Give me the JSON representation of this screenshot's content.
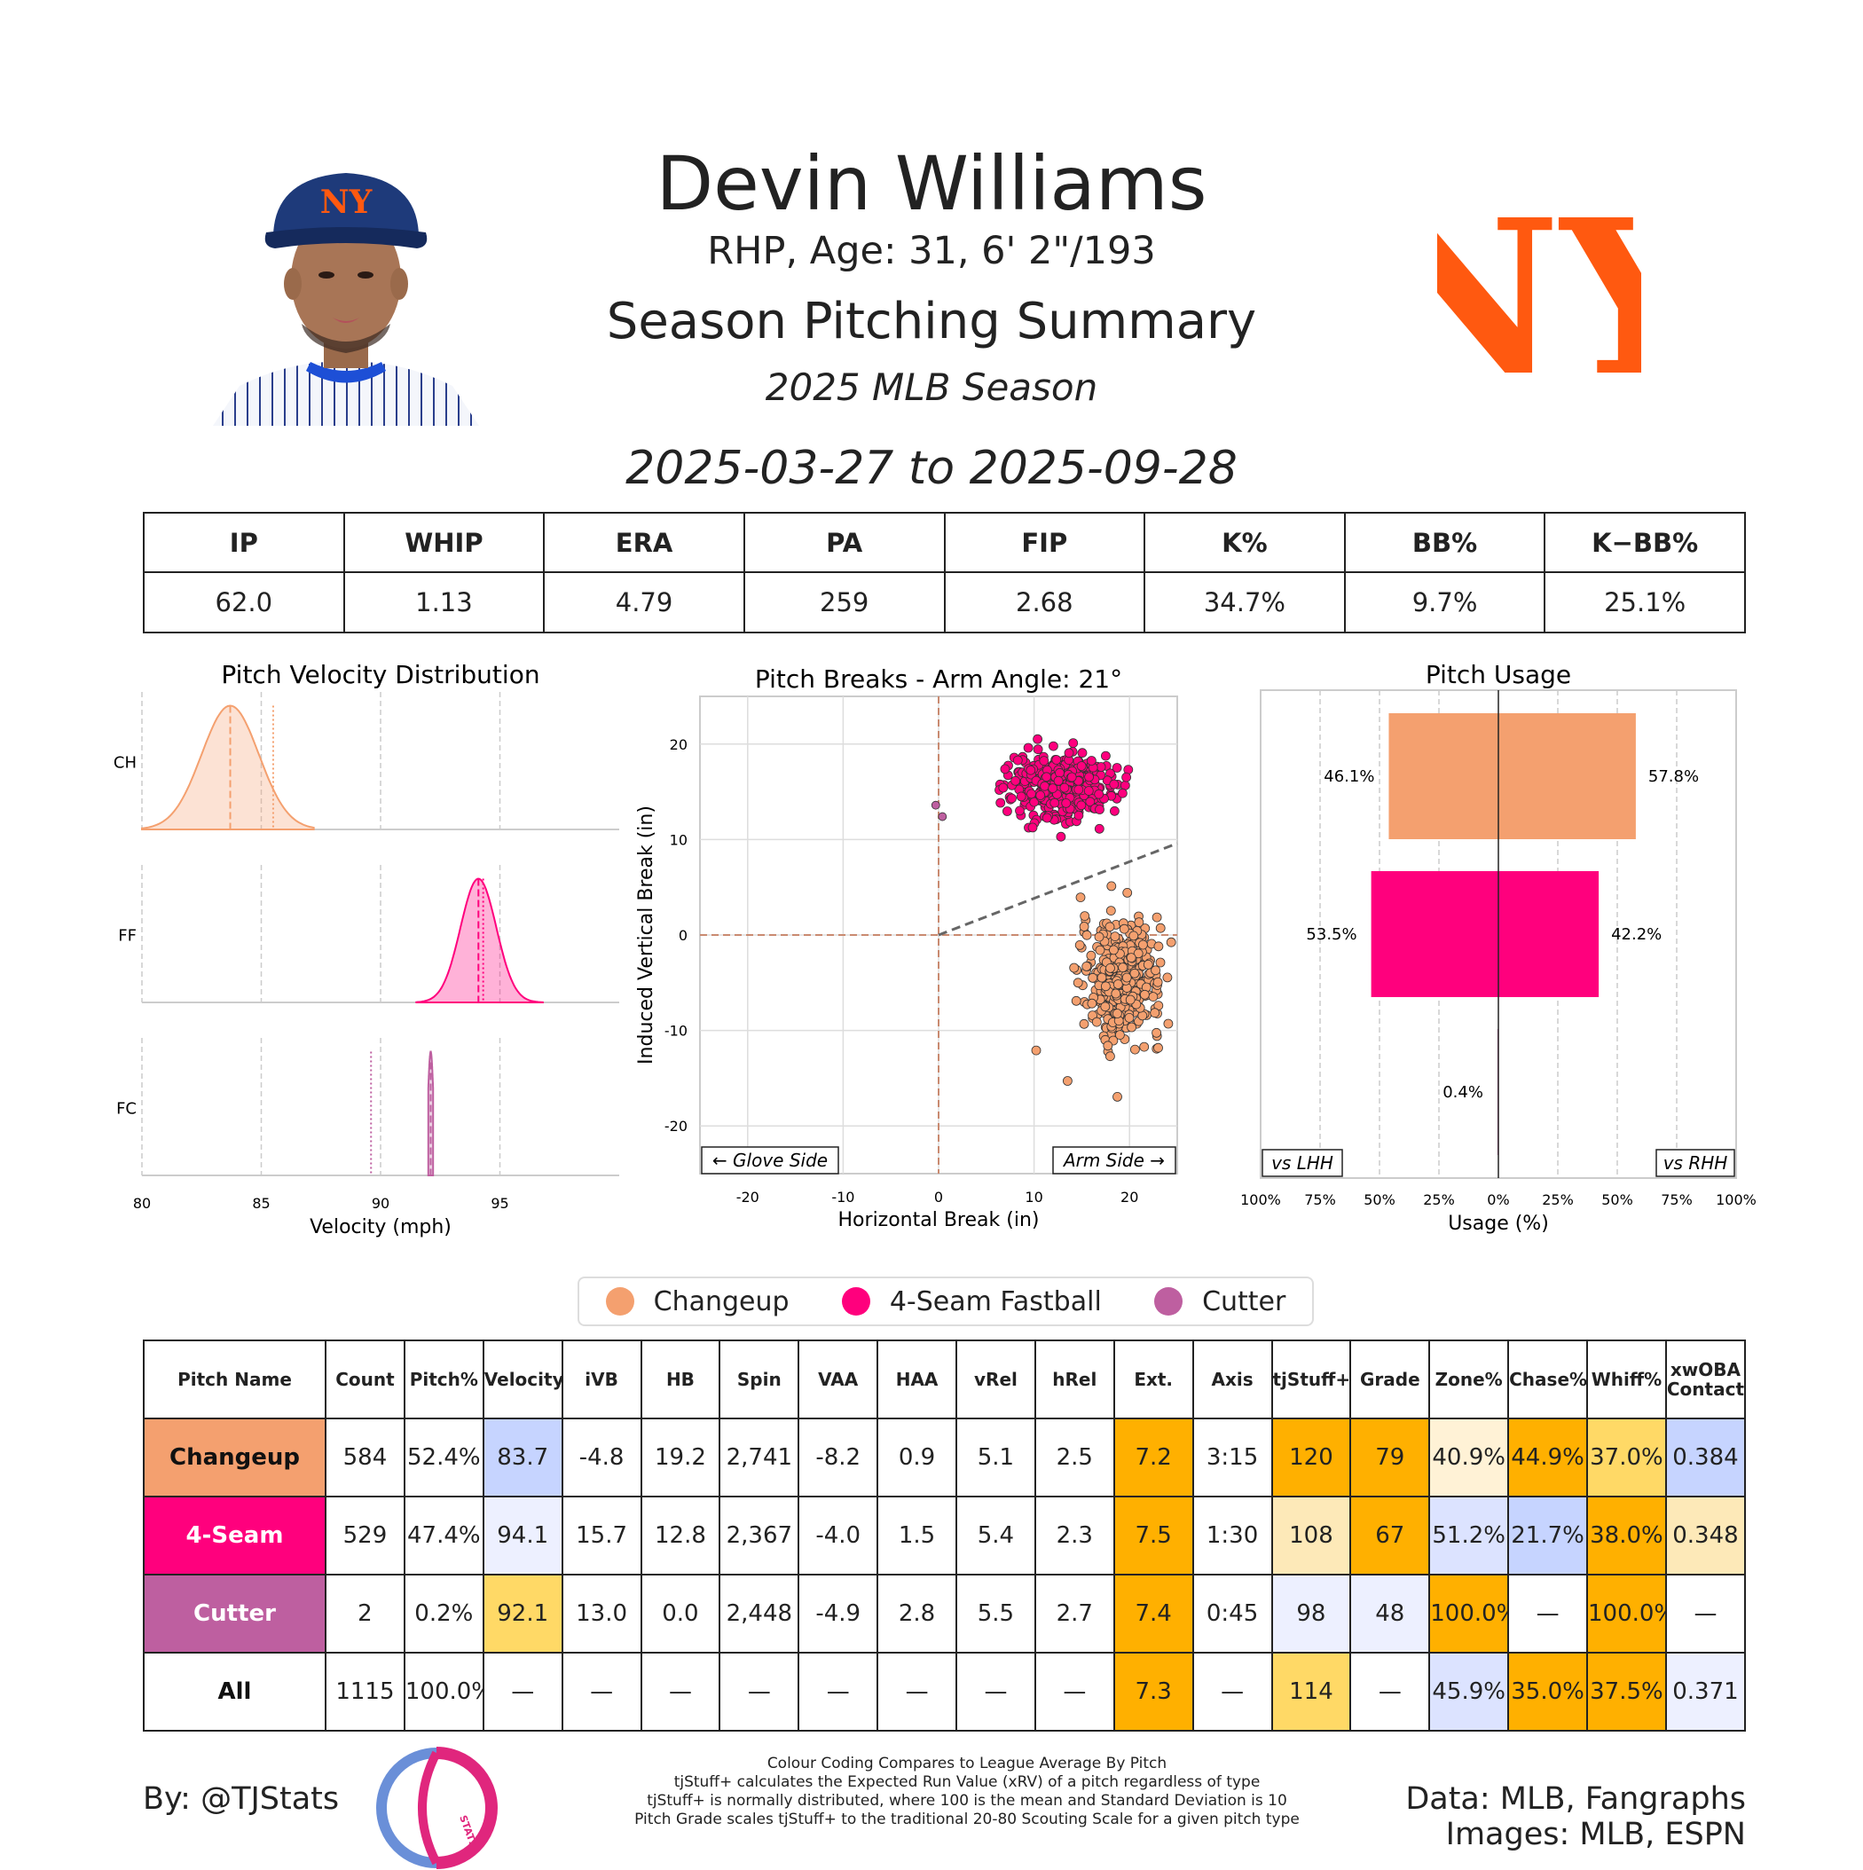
{
  "header": {
    "name": "Devin Williams",
    "bio": "RHP, Age: 31, 6' 2\"/193",
    "title": "Season Pitching Summary",
    "season": "2025 MLB Season",
    "date_range": "2025-03-27 to 2025-09-28",
    "team_logo_text": "NY"
  },
  "summary_stats": {
    "headers": [
      "IP",
      "WHIP",
      "ERA",
      "PA",
      "FIP",
      "K%",
      "BB%",
      "K−BB%"
    ],
    "values": [
      "62.0",
      "1.13",
      "4.79",
      "259",
      "2.68",
      "34.7%",
      "9.7%",
      "25.1%"
    ]
  },
  "colors": {
    "changeup": "#F4A06F",
    "fastball": "#FF007D",
    "cutter": "#BE5FA0",
    "grade_high": "#FFB000",
    "grade_mid": "#FFD966",
    "grade_light": "#FDE9B8",
    "grade_low": "#C6D4FF",
    "grade_verylow": "#EDF0FF"
  },
  "legend": [
    "Changeup",
    "4-Seam Fastball",
    "Cutter"
  ],
  "chart_data": [
    {
      "type": "area",
      "title": "Pitch Velocity Distribution",
      "xlabel": "Velocity (mph)",
      "xlim": [
        80,
        100
      ],
      "xticks": [
        "80",
        "85",
        "90",
        "95"
      ],
      "rows": [
        {
          "label": "CH",
          "mean": 83.7,
          "sd": 1.2,
          "league_avg": 85.5,
          "xrange": [
            80,
            87.2
          ]
        },
        {
          "label": "FF",
          "mean": 94.1,
          "sd": 0.75,
          "league_avg": 94.3,
          "xrange": [
            91.5,
            96.8
          ]
        },
        {
          "label": "FC",
          "mean": 92.1,
          "sd": 0.12,
          "league_avg": 89.6,
          "xrange": [
            92.0,
            92.2
          ]
        }
      ]
    },
    {
      "type": "scatter",
      "title": "Pitch Breaks - Arm Angle: 21°",
      "xlabel": "Horizontal Break (in)",
      "ylabel": "Induced Vertical Break (in)",
      "xlim": [
        -25,
        25
      ],
      "ylim": [
        -25,
        25
      ],
      "xticks": [
        "-20",
        "-10",
        "0",
        "10",
        "20"
      ],
      "yticks": [
        "20",
        "10",
        "0",
        "-10",
        "-20"
      ],
      "glove_side": "← Glove Side",
      "arm_side": "Arm Side →",
      "arm_angle_deg": 21,
      "series": [
        {
          "name": "Changeup",
          "hb_mean": 19.2,
          "ivb_mean": -4.8,
          "hb_sd": 2.1,
          "ivb_sd": 3.0,
          "count": 584
        },
        {
          "name": "4-Seam Fastball",
          "hb_mean": 12.8,
          "ivb_mean": 15.7,
          "hb_sd": 2.6,
          "ivb_sd": 1.7,
          "count": 529
        },
        {
          "name": "Cutter",
          "points": [
            [
              -0.3,
              13.6
            ],
            [
              0.4,
              12.4
            ]
          ]
        }
      ]
    },
    {
      "type": "bar",
      "title": "Pitch Usage",
      "xlabel": "Usage (%)",
      "xlim": [
        -100,
        100
      ],
      "xticks": [
        "100%",
        "75%",
        "50%",
        "25%",
        "0%",
        "25%",
        "50%",
        "75%",
        "100%"
      ],
      "left_label": "vs LHH",
      "right_label": "vs RHH",
      "categories": [
        "Changeup",
        "4-Seam Fastball",
        "Cutter"
      ],
      "vs_lhh": [
        46.1,
        53.5,
        0.4
      ],
      "vs_rhh": [
        57.8,
        42.2,
        0.0
      ],
      "vs_lhh_labels": [
        "46.1%",
        "53.5%",
        "0.4%"
      ],
      "vs_rhh_labels": [
        "57.8%",
        "42.2%",
        ""
      ]
    }
  ],
  "pitch_table": {
    "headers": [
      "Pitch Name",
      "Count",
      "Pitch%",
      "Velocity",
      "iVB",
      "HB",
      "Spin",
      "VAA",
      "HAA",
      "vRel",
      "hRel",
      "Ext.",
      "Axis",
      "tjStuff+",
      "Grade",
      "Zone%",
      "Chase%",
      "Whiff%",
      "xwOBA Contact"
    ],
    "rows": [
      {
        "name": "Changeup",
        "values": [
          "584",
          "52.4%",
          "83.7",
          "-4.8",
          "19.2",
          "2,741",
          "-8.2",
          "0.9",
          "5.1",
          "2.5",
          "7.2",
          "3:15",
          "120",
          "79",
          "40.9%",
          "44.9%",
          "37.0%",
          "0.384"
        ],
        "shades": [
          "",
          "",
          "low",
          "",
          "",
          "",
          "",
          "",
          "",
          "",
          "high",
          "",
          "high",
          "high",
          "cream",
          "high",
          "mid",
          "low"
        ]
      },
      {
        "name": "4-Seam",
        "values": [
          "529",
          "47.4%",
          "94.1",
          "15.7",
          "12.8",
          "2,367",
          "-4.0",
          "1.5",
          "5.4",
          "2.3",
          "7.5",
          "1:30",
          "108",
          "67",
          "51.2%",
          "21.7%",
          "38.0%",
          "0.348"
        ],
        "shades": [
          "",
          "",
          "verylow",
          "",
          "",
          "",
          "",
          "",
          "",
          "",
          "high",
          "",
          "light",
          "high",
          "lowlight",
          "low",
          "high",
          "light"
        ]
      },
      {
        "name": "Cutter",
        "values": [
          "2",
          "0.2%",
          "92.1",
          "13.0",
          "0.0",
          "2,448",
          "-4.9",
          "2.8",
          "5.5",
          "2.7",
          "7.4",
          "0:45",
          "98",
          "48",
          "100.0%",
          "—",
          "100.0%",
          "—"
        ],
        "shades": [
          "",
          "",
          "mid",
          "",
          "",
          "",
          "",
          "",
          "",
          "",
          "high",
          "",
          "verylow",
          "verylow",
          "high",
          "",
          "high",
          ""
        ]
      },
      {
        "name": "All",
        "values": [
          "1115",
          "100.0%",
          "—",
          "—",
          "—",
          "—",
          "—",
          "—",
          "—",
          "—",
          "7.3",
          "—",
          "114",
          "—",
          "45.9%",
          "35.0%",
          "37.5%",
          "0.371"
        ],
        "shades": [
          "",
          "",
          "",
          "",
          "",
          "",
          "",
          "",
          "",
          "",
          "high",
          "",
          "mid",
          "",
          "lowlight",
          "high",
          "high",
          "verylow"
        ]
      }
    ]
  },
  "footer": {
    "byline": "By: @TJStats",
    "logo_text": "STATS",
    "notes": [
      "Colour Coding Compares to League Average By Pitch",
      "tjStuff+ calculates the Expected Run Value (xRV) of a pitch regardless of type",
      "tjStuff+ is normally distributed, where 100 is the mean and Standard Deviation is 10",
      "Pitch Grade scales tjStuff+ to the traditional 20-80 Scouting Scale for a given pitch type"
    ],
    "credits_line1": "Data: MLB, Fangraphs",
    "credits_line2": "Images: MLB, ESPN"
  }
}
